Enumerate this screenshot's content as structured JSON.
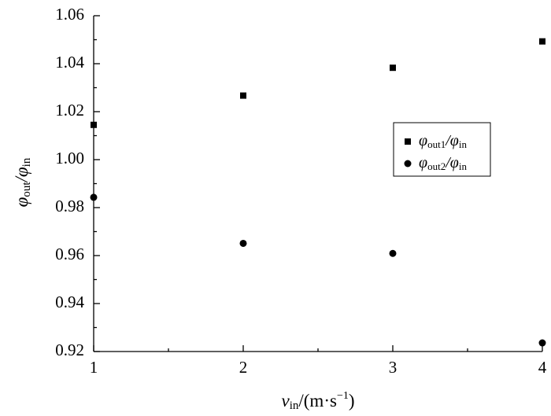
{
  "chart_data": {
    "type": "scatter",
    "x_label": [
      "v",
      "in",
      "/(m·s",
      "−1",
      ")"
    ],
    "y_label": [
      "φ",
      "out",
      "/φ",
      "in"
    ],
    "series": [
      {
        "name": [
          "φ",
          "out1",
          "/φ",
          "in"
        ],
        "marker": "square",
        "color": "#000000",
        "x": [
          1,
          2,
          3,
          4
        ],
        "values": [
          1.0145,
          1.0267,
          1.0383,
          1.0493
        ]
      },
      {
        "name": [
          "φ",
          "out2",
          "/φ",
          "in"
        ],
        "marker": "circle",
        "color": "#000000",
        "x": [
          1,
          2,
          3,
          4
        ],
        "values": [
          0.9843,
          0.9651,
          0.9609,
          0.9236
        ]
      }
    ],
    "xlim": [
      1,
      4
    ],
    "xticks": [
      1,
      2,
      3,
      4
    ],
    "xminorticks": [
      1.5,
      2.5,
      3.5
    ],
    "ylim": [
      0.92,
      1.06
    ],
    "yticks": [
      0.92,
      0.94,
      0.96,
      0.98,
      {
        "value": 1,
        "label": "1.00"
      },
      1.02,
      1.04,
      1.06
    ],
    "yminorticks": [
      0.93,
      0.95,
      0.97,
      0.99,
      1.01,
      1.03,
      1.05
    ],
    "legend": "right"
  }
}
